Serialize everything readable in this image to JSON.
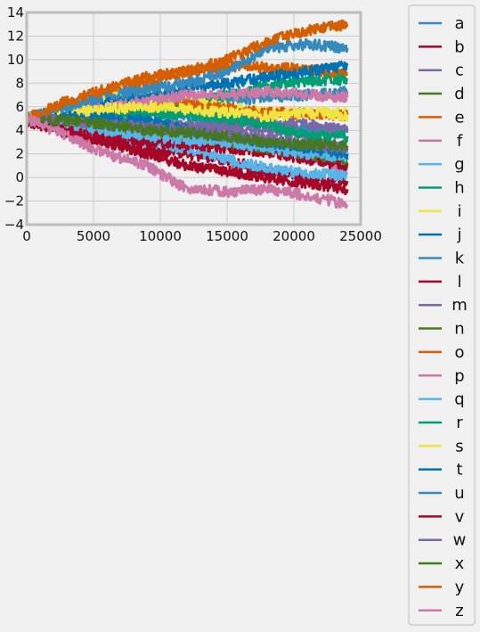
{
  "chart_data": {
    "type": "line",
    "title": "",
    "xlabel": "",
    "ylabel": "",
    "xlim": [
      0,
      25000
    ],
    "ylim": [
      -4,
      14
    ],
    "x_ticks": [
      0,
      5000,
      10000,
      15000,
      20000,
      25000
    ],
    "y_ticks": [
      -4,
      -2,
      0,
      2,
      4,
      6,
      8,
      10,
      12,
      14
    ],
    "x_tick_labels": [
      "0",
      "5000",
      "10000",
      "15000",
      "20000",
      "25000"
    ],
    "y_tick_labels": [
      "−4",
      "−2",
      "0",
      "2",
      "4",
      "6",
      "8",
      "10",
      "12",
      "14"
    ],
    "grid": true,
    "legend_position": "outside-right",
    "x": [
      0,
      3000,
      6000,
      9000,
      12000,
      15000,
      18000,
      21000,
      24000
    ],
    "series": [
      {
        "name": "a",
        "color": "#348ABD",
        "values": [
          5.0,
          5.1,
          5.5,
          6.0,
          6.2,
          6.5,
          6.8,
          7.0,
          7.3
        ]
      },
      {
        "name": "b",
        "color": "#A60628",
        "values": [
          4.8,
          3.8,
          3.0,
          2.5,
          2.0,
          1.5,
          0.5,
          0.0,
          -0.3
        ]
      },
      {
        "name": "c",
        "color": "#7A68A6",
        "values": [
          5.0,
          4.8,
          4.6,
          4.5,
          4.4,
          4.2,
          4.0,
          3.5,
          2.5
        ]
      },
      {
        "name": "d",
        "color": "#467821",
        "values": [
          5.0,
          4.7,
          4.3,
          4.0,
          3.8,
          3.5,
          3.0,
          2.0,
          1.0
        ]
      },
      {
        "name": "e",
        "color": "#D55E00",
        "values": [
          5.0,
          6.0,
          7.0,
          8.0,
          9.0,
          9.5,
          9.3,
          9.2,
          8.8
        ]
      },
      {
        "name": "f",
        "color": "#CC79A7",
        "values": [
          5.0,
          4.5,
          4.5,
          4.0,
          3.8,
          3.5,
          3.0,
          2.0,
          0.5
        ]
      },
      {
        "name": "g",
        "color": "#56B4E9",
        "values": [
          5.0,
          4.2,
          3.5,
          3.0,
          2.5,
          1.5,
          0.8,
          0.3,
          0.2
        ]
      },
      {
        "name": "h",
        "color": "#009E73",
        "values": [
          5.0,
          5.5,
          5.8,
          6.0,
          6.3,
          7.0,
          7.8,
          8.2,
          8.3
        ]
      },
      {
        "name": "i",
        "color": "#F0E442",
        "values": [
          5.0,
          6.0,
          6.8,
          7.0,
          6.5,
          6.0,
          5.5,
          5.5,
          5.5
        ]
      },
      {
        "name": "j",
        "color": "#0072B2",
        "values": [
          5.0,
          5.8,
          6.5,
          7.0,
          7.5,
          8.0,
          8.5,
          9.0,
          9.5
        ]
      },
      {
        "name": "k",
        "color": "#348ABD",
        "values": [
          5.0,
          5.5,
          5.5,
          5.5,
          5.2,
          5.0,
          4.5,
          4.0,
          3.8
        ]
      },
      {
        "name": "l",
        "color": "#A60628",
        "values": [
          5.0,
          4.5,
          3.5,
          3.0,
          2.8,
          2.5,
          2.2,
          1.5,
          1.0
        ]
      },
      {
        "name": "m",
        "color": "#7A68A6",
        "values": [
          5.0,
          5.2,
          5.0,
          4.5,
          4.2,
          4.5,
          4.8,
          4.5,
          4.0
        ]
      },
      {
        "name": "n",
        "color": "#467821",
        "values": [
          5.0,
          4.8,
          4.5,
          4.0,
          3.5,
          3.0,
          2.5,
          2.0,
          1.5
        ]
      },
      {
        "name": "o",
        "color": "#D55E00",
        "values": [
          5.0,
          5.5,
          5.5,
          6.0,
          6.2,
          5.8,
          5.5,
          5.4,
          5.3
        ]
      },
      {
        "name": "p",
        "color": "#CC79A7",
        "values": [
          5.0,
          5.5,
          6.0,
          6.5,
          7.0,
          7.0,
          7.3,
          7.0,
          6.8
        ]
      },
      {
        "name": "q",
        "color": "#56B4E9",
        "values": [
          5.0,
          4.5,
          4.0,
          3.5,
          3.2,
          3.0,
          2.5,
          2.0,
          1.8
        ]
      },
      {
        "name": "r",
        "color": "#009E73",
        "values": [
          5.0,
          5.5,
          5.5,
          5.5,
          5.3,
          5.0,
          4.5,
          3.5,
          3.5
        ]
      },
      {
        "name": "s",
        "color": "#F0E442",
        "values": [
          5.0,
          5.5,
          5.8,
          6.0,
          5.8,
          5.5,
          5.2,
          5.5,
          5.2
        ]
      },
      {
        "name": "t",
        "color": "#0072B2",
        "values": [
          5.0,
          5.2,
          5.0,
          4.8,
          4.0,
          3.5,
          3.0,
          2.5,
          2.0
        ]
      },
      {
        "name": "u",
        "color": "#348ABD",
        "values": [
          5.0,
          6.0,
          7.0,
          7.5,
          8.0,
          9.0,
          11.0,
          11.3,
          11.0
        ]
      },
      {
        "name": "v",
        "color": "#A60628",
        "values": [
          5.0,
          4.0,
          3.0,
          2.0,
          1.0,
          0.5,
          0.0,
          -0.5,
          -1.0
        ]
      },
      {
        "name": "w",
        "color": "#7A68A6",
        "values": [
          5.0,
          4.8,
          4.5,
          4.3,
          4.0,
          3.5,
          3.2,
          2.8,
          2.5
        ]
      },
      {
        "name": "x",
        "color": "#467821",
        "values": [
          5.0,
          4.8,
          4.5,
          4.0,
          3.8,
          3.5,
          3.0,
          2.8,
          2.7
        ]
      },
      {
        "name": "y",
        "color": "#D55E00",
        "values": [
          5.0,
          6.5,
          7.5,
          8.5,
          9.0,
          10.0,
          11.5,
          12.5,
          13.0
        ]
      },
      {
        "name": "z",
        "color": "#CC79A7",
        "values": [
          5.0,
          3.5,
          2.0,
          1.0,
          -1.0,
          -1.2,
          -1.0,
          -1.5,
          -2.3
        ]
      }
    ]
  }
}
